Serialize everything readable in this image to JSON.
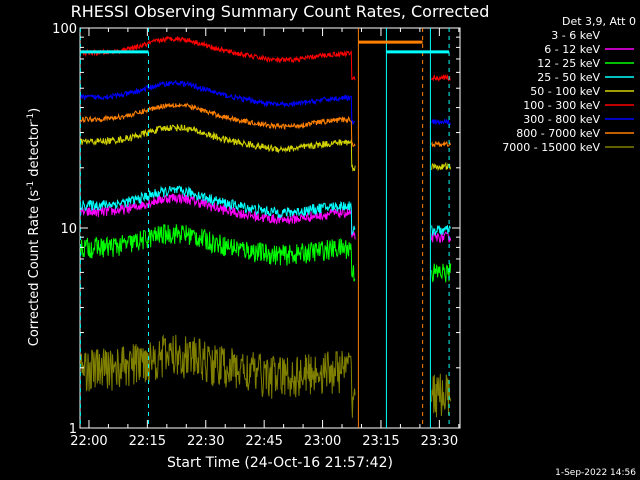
{
  "chart_data": {
    "type": "line",
    "title": "RHESSI Observing Summary Count Rates, Corrected",
    "xlabel": "Start Time (24-Oct-16 21:57:42)",
    "ylabel": "Corrected Count Rate (s⁻¹ detector⁻¹)",
    "ylabel_parts": {
      "main": "Corrected Count Rate (s",
      "sup1": "-1",
      "mid": " detector",
      "sup2": "-1",
      "end": ")"
    },
    "yscale": "log",
    "ylim": [
      1,
      100
    ],
    "y_ticks": [
      {
        "value": 1,
        "label": "1"
      },
      {
        "value": 10,
        "label": "10"
      },
      {
        "value": 100,
        "label": "100"
      }
    ],
    "xlim_minutes": [
      -2.3,
      35.3
    ],
    "x_ticks": [
      {
        "value": 0,
        "label": "22:00"
      },
      {
        "value": 15,
        "label": "22:15"
      },
      {
        "value": 30,
        "label": "22:30"
      },
      {
        "value": 45,
        "label": "22:45"
      },
      {
        "value": 60,
        "label": "23:00"
      },
      {
        "value": 75,
        "label": "23:15"
      },
      {
        "value": 90,
        "label": "23:30"
      }
    ],
    "legend_header": "Det 3,9, Att 0",
    "legend_position": "right",
    "series": [
      {
        "name": "3 - 6 keV",
        "color": "#000000",
        "level": 9,
        "noise": 0.15
      },
      {
        "name": "6 - 12 keV",
        "color": "#ff00ff",
        "level": 12,
        "noise": 0.06
      },
      {
        "name": "12 - 25 keV",
        "color": "#00ff00",
        "level": 8,
        "noise": 0.12
      },
      {
        "name": "25 - 50 keV",
        "color": "#00ffff",
        "level": 13,
        "noise": 0.06
      },
      {
        "name": "50 - 100 keV",
        "color": "#d4d400",
        "level": 27,
        "noise": 0.04
      },
      {
        "name": "100 - 300 keV",
        "color": "#ff0000",
        "level": 75,
        "noise": 0.03
      },
      {
        "name": "300 - 800 keV",
        "color": "#0000ff",
        "level": 45,
        "noise": 0.03
      },
      {
        "name": "800 - 7000 keV",
        "color": "#ff8000",
        "level": 35,
        "noise": 0.03
      },
      {
        "name": "7000 - 15000 keV",
        "color": "#808000",
        "level": 2,
        "noise": 0.25
      }
    ],
    "footer": "1-Sep-2022 14:56"
  }
}
